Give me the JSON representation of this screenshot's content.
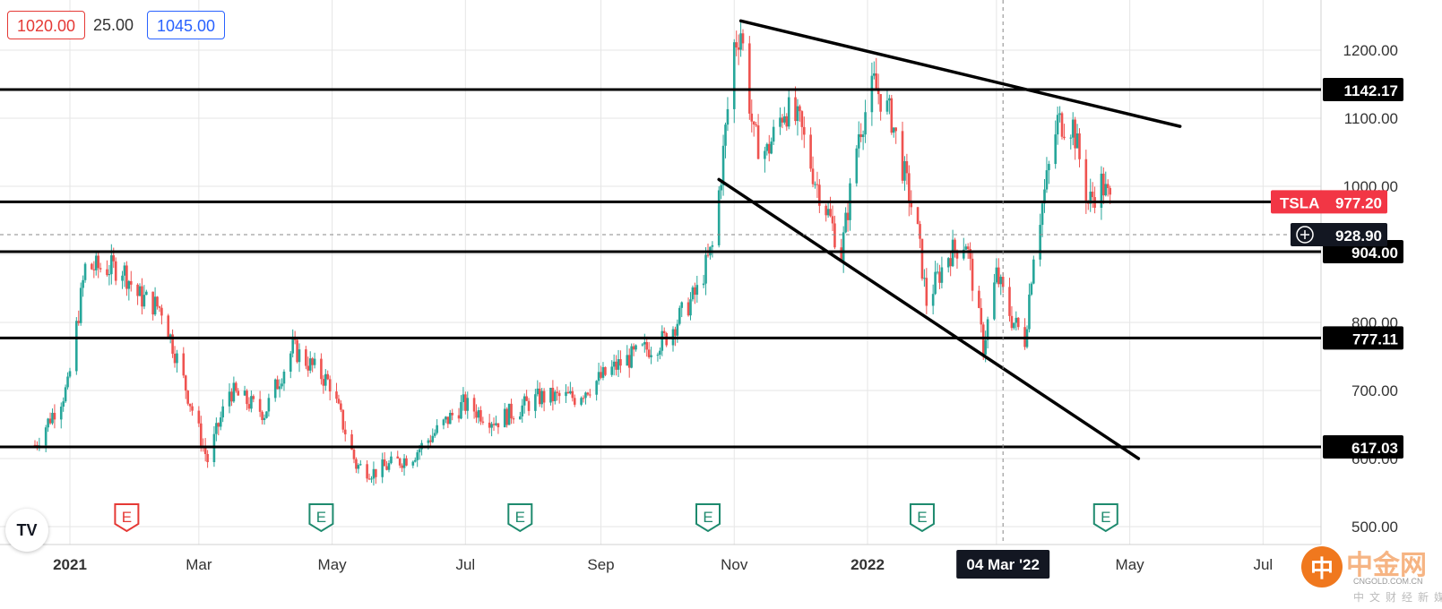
{
  "header": {
    "sell_price": "1020.00",
    "spread": "25.00",
    "buy_price": "1045.00"
  },
  "logo_text": "TV",
  "watermark": {
    "symbol": "中",
    "name": "中金网",
    "domain": "CNGOLD.COM.CN",
    "tagline": "中文财经新媒体"
  },
  "colors": {
    "up": "#26a69a",
    "down": "#ef5350",
    "line": "#000000",
    "grid": "#e6e6e6",
    "earnings_green": "#1e8a6e",
    "earnings_red": "#e53935",
    "ticker_bg": "#f23645"
  },
  "chart_data": {
    "type": "candlestick",
    "symbol": "TSLA",
    "x_labels": [
      "2021",
      "Mar",
      "May",
      "Jul",
      "Sep",
      "Nov",
      "2022",
      "May",
      "Jul"
    ],
    "y_ticks": [
      "500.00",
      "600.00",
      "700.00",
      "800.00",
      "1000.00",
      "1100.00",
      "1200.00"
    ],
    "ylim": [
      470,
      1265
    ],
    "grid": true,
    "horizontal_levels": [
      {
        "value": 1142.17,
        "label": "1142.17"
      },
      {
        "value": 977.2,
        "label": "977.20"
      },
      {
        "value": 904.0,
        "label": "904.00"
      },
      {
        "value": 777.11,
        "label": "777.11"
      },
      {
        "value": 617.03,
        "label": "617.03"
      }
    ],
    "last_price": {
      "value": 977.2,
      "label": "977.20",
      "symbol": "TSLA"
    },
    "crosshair": {
      "price": 928.9,
      "label": "928.90",
      "date_label": "04 Mar '22"
    },
    "trend_lines": [
      {
        "from": [
          "2021-11-04",
          1243
        ],
        "to": [
          "2022-05-24",
          1088
        ]
      },
      {
        "from": [
          "2021-10-25",
          1010
        ],
        "to": [
          "2022-05-05",
          600
        ]
      }
    ],
    "earnings": [
      {
        "date": "2021-01-27",
        "kind": "past-negative",
        "label": "E"
      },
      {
        "date": "2021-04-26",
        "kind": "past",
        "label": "E"
      },
      {
        "date": "2021-07-26",
        "kind": "past",
        "label": "E"
      },
      {
        "date": "2021-10-20",
        "kind": "past",
        "label": "E"
      },
      {
        "date": "2022-01-26",
        "kind": "past",
        "label": "E"
      },
      {
        "date": "2022-04-20",
        "kind": "past",
        "label": "E"
      }
    ],
    "close_anchors": [
      [
        "2020-12-16",
        620
      ],
      [
        "2020-12-31",
        705
      ],
      [
        "2021-01-08",
        880
      ],
      [
        "2021-01-25",
        880
      ],
      [
        "2021-02-01",
        840
      ],
      [
        "2021-02-12",
        820
      ],
      [
        "2021-02-22",
        715
      ],
      [
        "2021-03-05",
        597
      ],
      [
        "2021-03-15",
        700
      ],
      [
        "2021-03-31",
        667
      ],
      [
        "2021-04-13",
        762
      ],
      [
        "2021-04-30",
        710
      ],
      [
        "2021-05-12",
        590
      ],
      [
        "2021-05-20",
        580
      ],
      [
        "2021-06-07",
        605
      ],
      [
        "2021-06-30",
        680
      ],
      [
        "2021-07-15",
        655
      ],
      [
        "2021-08-04",
        690
      ],
      [
        "2021-08-20",
        690
      ],
      [
        "2021-09-10",
        740
      ],
      [
        "2021-09-30",
        775
      ],
      [
        "2021-10-15",
        845
      ],
      [
        "2021-10-22",
        910
      ],
      [
        "2021-10-26",
        1018
      ],
      [
        "2021-11-01",
        1208
      ],
      [
        "2021-11-04",
        1230
      ],
      [
        "2021-11-10",
        1070
      ],
      [
        "2021-11-16",
        1050
      ],
      [
        "2021-11-24",
        1115
      ],
      [
        "2021-12-01",
        1090
      ],
      [
        "2021-12-08",
        1010
      ],
      [
        "2021-12-14",
        960
      ],
      [
        "2021-12-20",
        900
      ],
      [
        "2021-12-28",
        1080
      ],
      [
        "2022-01-04",
        1150
      ],
      [
        "2022-01-12",
        1100
      ],
      [
        "2022-01-24",
        930
      ],
      [
        "2022-01-28",
        830
      ],
      [
        "2022-02-07",
        900
      ],
      [
        "2022-02-15",
        920
      ],
      [
        "2022-02-23",
        765
      ],
      [
        "2022-03-01",
        870
      ],
      [
        "2022-03-08",
        805
      ],
      [
        "2022-03-14",
        775
      ],
      [
        "2022-03-18",
        905
      ],
      [
        "2022-03-29",
        1095
      ],
      [
        "2022-04-05",
        1090
      ],
      [
        "2022-04-12",
        975
      ],
      [
        "2022-04-18",
        1005
      ],
      [
        "2022-04-22",
        977
      ]
    ]
  }
}
